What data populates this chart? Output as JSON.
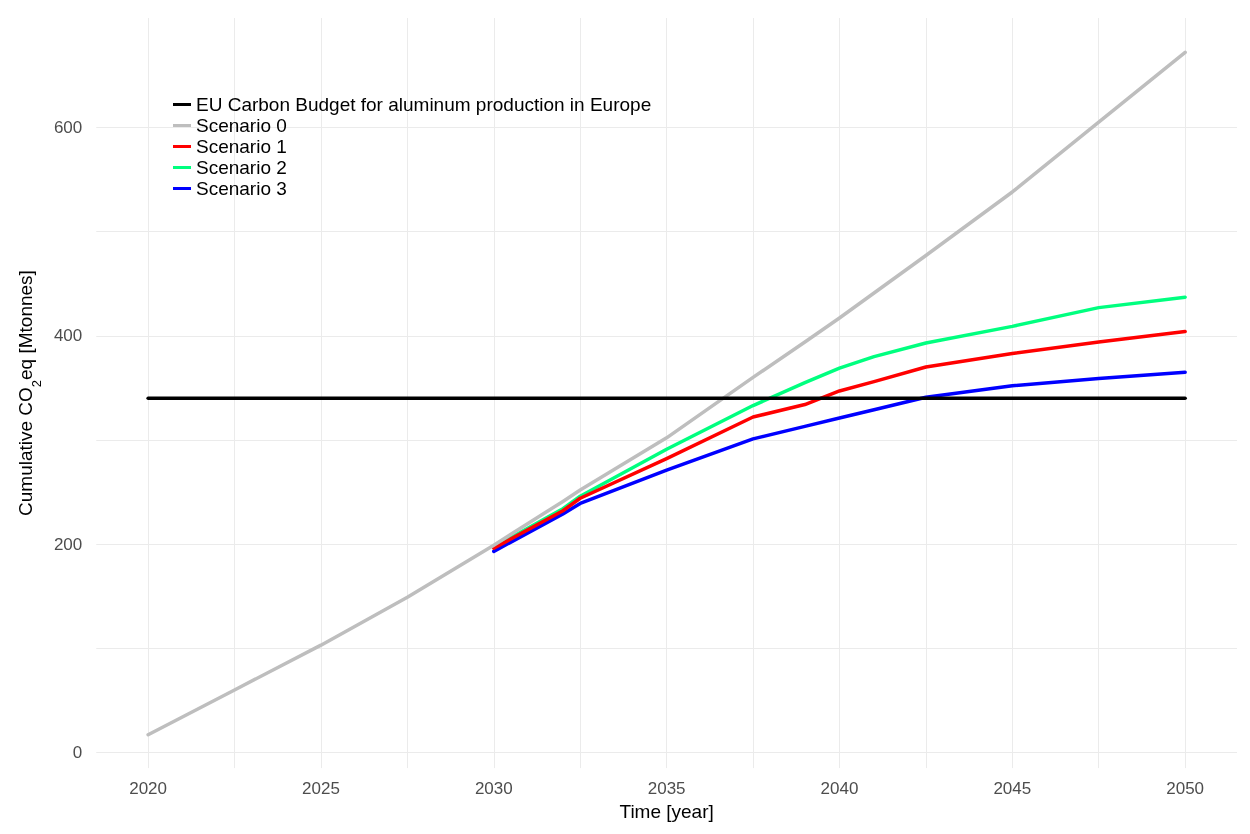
{
  "chart_data": {
    "type": "line",
    "xlabel": "Time [year]",
    "ylabel": "Cumulative CO$_{2}$eq [Mtonnes]",
    "x": [
      2020,
      2022.5,
      2025,
      2027.5,
      2030,
      2032,
      2032.5,
      2035,
      2037.5,
      2039,
      2040,
      2041,
      2042.5,
      2045,
      2047.5,
      2050
    ],
    "series": [
      {
        "name": "EU Carbon Budget for aluminum production in Europe",
        "color": "#000000",
        "x": [
          2020,
          2050
        ],
        "values": [
          340,
          340
        ]
      },
      {
        "name": "Scenario 0",
        "color": "#bebebe",
        "values": [
          17,
          60,
          103,
          149,
          199,
          241,
          252,
          302,
          360,
          394,
          417,
          441,
          477,
          538,
          605,
          672
        ]
      },
      {
        "name": "Scenario 1",
        "color": "#ff0000",
        "values": [
          null,
          null,
          null,
          null,
          196,
          232,
          244,
          282,
          322,
          334,
          347,
          356,
          370,
          383,
          394,
          404
        ]
      },
      {
        "name": "Scenario 2",
        "color": "#00ff7f",
        "values": [
          null,
          null,
          null,
          null,
          197,
          234,
          246,
          291,
          333,
          355,
          369,
          380,
          393,
          409,
          427,
          437
        ]
      },
      {
        "name": "Scenario 3",
        "color": "#0000ff",
        "values": [
          null,
          null,
          null,
          null,
          193,
          229,
          239,
          271,
          301,
          313,
          321,
          329,
          341,
          352,
          359,
          365
        ]
      }
    ],
    "xlim": [
      2018.5,
      2051.5
    ],
    "xticks": [
      2020,
      2025,
      2030,
      2035,
      2040,
      2045,
      2050
    ],
    "ylim": [
      -15,
      705
    ],
    "yticks": [
      0,
      200,
      400,
      600
    ],
    "grid": true,
    "legend": "top left",
    "marker": "none",
    "line_style": "solid"
  }
}
